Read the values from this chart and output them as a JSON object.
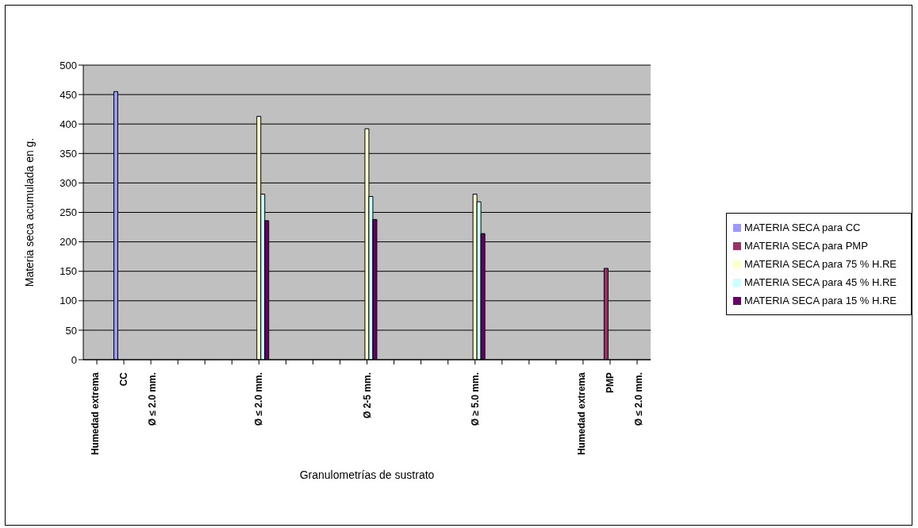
{
  "chart_data": {
    "type": "bar",
    "xlabel": "Granulometrías de sustrato",
    "ylabel": "Materia seca acumulada en g.",
    "categories": [
      null,
      "Humedad extrema\nCC\nØ ≤ 2.0 mm.",
      null,
      null,
      null,
      null,
      "Ø ≤ 2.0 mm.",
      null,
      null,
      null,
      "Ø 2-5 mm.",
      null,
      null,
      null,
      "Ø ≥ 5.0 mm.",
      null,
      null,
      null,
      null,
      "Humedad extrema\nPMP\nØ ≤ 2.0 mm.",
      null
    ],
    "series": [
      {
        "name": "MATERIA SECA para CC",
        "color": "#9999ff",
        "values": [
          null,
          455,
          null,
          null,
          null,
          null,
          null,
          null,
          null,
          null,
          null,
          null,
          null,
          null,
          null,
          null,
          null,
          null,
          null,
          null,
          null
        ]
      },
      {
        "name": "MATERIA SECA para PMP",
        "color": "#993366",
        "values": [
          null,
          null,
          null,
          null,
          null,
          null,
          null,
          null,
          null,
          null,
          null,
          null,
          null,
          null,
          null,
          null,
          null,
          null,
          null,
          155,
          null
        ]
      },
      {
        "name": "MATERIA SECA para 75 % H.RE",
        "color": "#ffffcc",
        "values": [
          null,
          null,
          null,
          null,
          null,
          null,
          413,
          null,
          null,
          null,
          392,
          null,
          null,
          null,
          281,
          null,
          null,
          null,
          null,
          null,
          null
        ]
      },
      {
        "name": "MATERIA SECA para 45 % H.RE",
        "color": "#ccffff",
        "values": [
          null,
          null,
          null,
          null,
          null,
          null,
          281,
          null,
          null,
          null,
          277,
          null,
          null,
          null,
          268,
          null,
          null,
          null,
          null,
          null,
          null
        ]
      },
      {
        "name": "MATERIA SECA para 15 % H.RE",
        "color": "#660066",
        "values": [
          null,
          null,
          null,
          null,
          null,
          null,
          236,
          null,
          null,
          null,
          238,
          null,
          null,
          null,
          214,
          null,
          null,
          null,
          null,
          null,
          null
        ]
      }
    ],
    "ylim": [
      0,
      500
    ],
    "yticks": [
      0,
      50,
      100,
      150,
      200,
      250,
      300,
      350,
      400,
      450,
      500
    ],
    "grid": "y",
    "legend": "right"
  }
}
